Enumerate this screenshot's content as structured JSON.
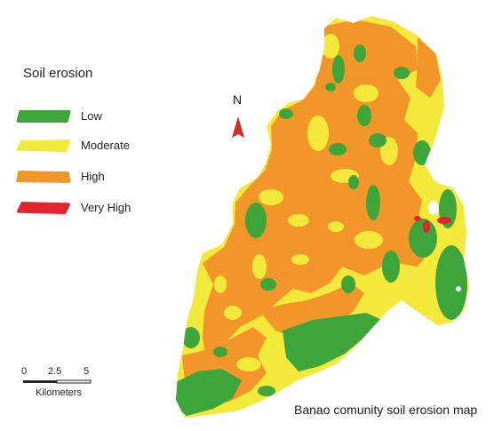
{
  "legend": {
    "title": "Soil erosion",
    "items": [
      {
        "label": "Low",
        "color": "#3ea53b"
      },
      {
        "label": "Moderate",
        "color": "#f3e93a"
      },
      {
        "label": "High",
        "color": "#f2962a"
      },
      {
        "label": "Very High",
        "color": "#e0252f"
      }
    ]
  },
  "north": {
    "label": "N",
    "color": "#d42a2a"
  },
  "scale_bar": {
    "ticks": [
      "0",
      "2.5",
      "5"
    ],
    "units": "Kilometers"
  },
  "caption": "Banao comunity soil erosion map",
  "colors": {
    "low": "#3ea53b",
    "moderate": "#f3e93a",
    "high": "#f2962a",
    "very_high": "#e0252f"
  }
}
